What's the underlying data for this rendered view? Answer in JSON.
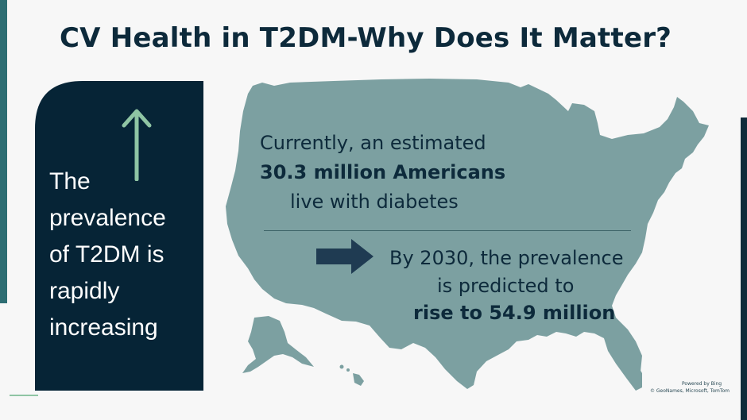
{
  "slide": {
    "title": "CV Health in T2DM-Why Does It Matter?",
    "panel_lines": [
      "The",
      "prevalence",
      "of T2DM is",
      "rapidly",
      "increasing"
    ],
    "current_line1": "Currently, an estimated",
    "current_line2": "30.3 million Americans",
    "current_line3": "live with diabetes",
    "future_line1": "By 2030, the prevalence",
    "future_line2": "is predicted to",
    "future_line3": "rise to 54.9 million",
    "attribution_line1": "Powered by Bing",
    "attribution_line2": "© GeoNames, Microsoft, TomTom"
  },
  "colors": {
    "panel": "#062436",
    "map": "#7ca0a1",
    "title": "#0d2a3b",
    "up_arrow": "#8fc5a4",
    "right_arrow": "#1f3b52"
  },
  "icons": {
    "up_arrow": "arrow-up-icon",
    "right_arrow": "arrow-right-icon"
  }
}
